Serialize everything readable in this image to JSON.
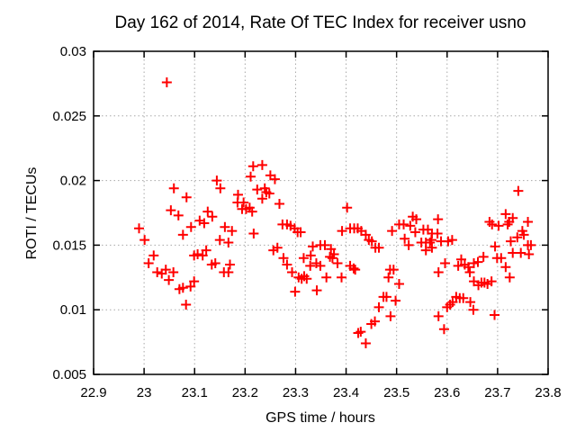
{
  "page": {
    "background": "#ffffff"
  },
  "style": {
    "border_color": "#000000",
    "grid_color": "#a8a8a8",
    "text_color": "#000000",
    "marker_color": "#ff0000"
  },
  "chart_data": {
    "type": "scatter",
    "title": "Day 162 of 2014, Rate Of TEC Index for receiver usno",
    "xlabel": "GPS time / hours",
    "ylabel": "ROTI / TECUs",
    "xlim": [
      22.9,
      23.8
    ],
    "ylim": [
      0.005,
      0.03
    ],
    "grid": true,
    "legend": "none",
    "marker": {
      "shape": "plus",
      "color": "#ff0000",
      "size": 11,
      "stroke_width": 2
    },
    "xticks": {
      "values": [
        22.9,
        23.0,
        23.1,
        23.2,
        23.3,
        23.4,
        23.5,
        23.6,
        23.7,
        23.8
      ],
      "labels": [
        "22.9",
        "23",
        "23.1",
        "23.2",
        "23.3",
        "23.4",
        "23.5",
        "23.6",
        "23.7",
        "23.8"
      ]
    },
    "yticks": {
      "values": [
        0.005,
        0.01,
        0.015,
        0.02,
        0.025,
        0.03
      ],
      "labels": [
        "0.005",
        "0.01",
        "0.015",
        "0.02",
        "0.025",
        "0.03"
      ]
    },
    "series": [
      {
        "name": "ROTI",
        "points": [
          [
            22.99,
            0.0163
          ],
          [
            23.001,
            0.0154
          ],
          [
            23.045,
            0.0276
          ],
          [
            23.059,
            0.0194
          ],
          [
            23.084,
            0.0187
          ],
          [
            23.053,
            0.0177
          ],
          [
            23.068,
            0.0173
          ],
          [
            23.093,
            0.0164
          ],
          [
            23.077,
            0.0158
          ],
          [
            23.019,
            0.0142
          ],
          [
            23.009,
            0.0136
          ],
          [
            23.043,
            0.0131
          ],
          [
            23.026,
            0.0129
          ],
          [
            23.035,
            0.0128
          ],
          [
            23.058,
            0.0129
          ],
          [
            23.049,
            0.0123
          ],
          [
            23.07,
            0.0116
          ],
          [
            23.077,
            0.0117
          ],
          [
            23.092,
            0.0118
          ],
          [
            23.083,
            0.0104
          ],
          [
            23.099,
            0.0142
          ],
          [
            23.106,
            0.0143
          ],
          [
            23.116,
            0.0142
          ],
          [
            23.123,
            0.0146
          ],
          [
            23.099,
            0.0122
          ],
          [
            23.11,
            0.0169
          ],
          [
            23.119,
            0.0167
          ],
          [
            23.126,
            0.0176
          ],
          [
            23.135,
            0.0172
          ],
          [
            23.134,
            0.0135
          ],
          [
            23.141,
            0.0136
          ],
          [
            23.144,
            0.02
          ],
          [
            23.151,
            0.0194
          ],
          [
            23.15,
            0.0154
          ],
          [
            23.16,
            0.0164
          ],
          [
            23.167,
            0.0152
          ],
          [
            23.17,
            0.0135
          ],
          [
            23.158,
            0.0129
          ],
          [
            23.167,
            0.0129
          ],
          [
            23.174,
            0.0161
          ],
          [
            23.186,
            0.0189
          ],
          [
            23.185,
            0.0183
          ],
          [
            23.197,
            0.0183
          ],
          [
            23.194,
            0.0178
          ],
          [
            23.202,
            0.0178
          ],
          [
            23.209,
            0.0179
          ],
          [
            23.214,
            0.0176
          ],
          [
            23.211,
            0.0203
          ],
          [
            23.216,
            0.0211
          ],
          [
            23.234,
            0.0212
          ],
          [
            23.25,
            0.0204
          ],
          [
            23.259,
            0.0201
          ],
          [
            23.224,
            0.0193
          ],
          [
            23.239,
            0.0194
          ],
          [
            23.242,
            0.0191
          ],
          [
            23.248,
            0.019
          ],
          [
            23.234,
            0.0186
          ],
          [
            23.268,
            0.0182
          ],
          [
            23.274,
            0.0166
          ],
          [
            23.283,
            0.0166
          ],
          [
            23.29,
            0.0165
          ],
          [
            23.298,
            0.0163
          ],
          [
            23.304,
            0.016
          ],
          [
            23.31,
            0.016
          ],
          [
            23.217,
            0.0159
          ],
          [
            23.264,
            0.0148
          ],
          [
            23.256,
            0.0146
          ],
          [
            23.276,
            0.014
          ],
          [
            23.283,
            0.0135
          ],
          [
            23.293,
            0.0129
          ],
          [
            23.316,
            0.014
          ],
          [
            23.33,
            0.0142
          ],
          [
            23.317,
            0.0126
          ],
          [
            23.322,
            0.0124
          ],
          [
            23.306,
            0.0125
          ],
          [
            23.312,
            0.0124
          ],
          [
            23.299,
            0.0114
          ],
          [
            23.329,
            0.0134
          ],
          [
            23.334,
            0.0149
          ],
          [
            23.349,
            0.015
          ],
          [
            23.358,
            0.015
          ],
          [
            23.37,
            0.0147
          ],
          [
            23.376,
            0.0143
          ],
          [
            23.368,
            0.0141
          ],
          [
            23.373,
            0.014
          ],
          [
            23.341,
            0.0136
          ],
          [
            23.349,
            0.0134
          ],
          [
            23.383,
            0.0136
          ],
          [
            23.361,
            0.0125
          ],
          [
            23.391,
            0.0125
          ],
          [
            23.392,
            0.0161
          ],
          [
            23.402,
            0.0179
          ],
          [
            23.408,
            0.0163
          ],
          [
            23.416,
            0.0163
          ],
          [
            23.423,
            0.0163
          ],
          [
            23.43,
            0.0161
          ],
          [
            23.408,
            0.0134
          ],
          [
            23.415,
            0.0132
          ],
          [
            23.418,
            0.0131
          ],
          [
            23.439,
            0.0158
          ],
          [
            23.445,
            0.0154
          ],
          [
            23.451,
            0.0153
          ],
          [
            23.342,
            0.0115
          ],
          [
            23.424,
            0.0082
          ],
          [
            23.429,
            0.0083
          ],
          [
            23.439,
            0.0074
          ],
          [
            23.45,
            0.0089
          ],
          [
            23.457,
            0.0091
          ],
          [
            23.465,
            0.0102
          ],
          [
            23.474,
            0.011
          ],
          [
            23.48,
            0.011
          ],
          [
            23.488,
            0.0095
          ],
          [
            23.498,
            0.0107
          ],
          [
            23.505,
            0.012
          ],
          [
            23.484,
            0.0125
          ],
          [
            23.487,
            0.0131
          ],
          [
            23.494,
            0.0131
          ],
          [
            23.458,
            0.0148
          ],
          [
            23.465,
            0.0148
          ],
          [
            23.491,
            0.0161
          ],
          [
            23.505,
            0.0166
          ],
          [
            23.514,
            0.0166
          ],
          [
            23.527,
            0.0165
          ],
          [
            23.532,
            0.0172
          ],
          [
            23.539,
            0.017
          ],
          [
            23.537,
            0.016
          ],
          [
            23.553,
            0.0162
          ],
          [
            23.562,
            0.0162
          ],
          [
            23.516,
            0.0155
          ],
          [
            23.524,
            0.015
          ],
          [
            23.549,
            0.0152
          ],
          [
            23.558,
            0.0152
          ],
          [
            23.566,
            0.0152
          ],
          [
            23.558,
            0.0146
          ],
          [
            23.57,
            0.0159
          ],
          [
            23.569,
            0.0154
          ],
          [
            23.57,
            0.0148
          ],
          [
            23.582,
            0.017
          ],
          [
            23.581,
            0.0159
          ],
          [
            23.588,
            0.0153
          ],
          [
            23.602,
            0.0153
          ],
          [
            23.61,
            0.0154
          ],
          [
            23.583,
            0.0129
          ],
          [
            23.596,
            0.0136
          ],
          [
            23.628,
            0.0139
          ],
          [
            23.622,
            0.0134
          ],
          [
            23.635,
            0.0135
          ],
          [
            23.642,
            0.0133
          ],
          [
            23.653,
            0.0136
          ],
          [
            23.661,
            0.0137
          ],
          [
            23.672,
            0.0141
          ],
          [
            23.645,
            0.0129
          ],
          [
            23.653,
            0.0122
          ],
          [
            23.662,
            0.0119
          ],
          [
            23.668,
            0.0121
          ],
          [
            23.674,
            0.0121
          ],
          [
            23.68,
            0.012
          ],
          [
            23.618,
            0.011
          ],
          [
            23.625,
            0.0109
          ],
          [
            23.632,
            0.0109
          ],
          [
            23.6,
            0.0102
          ],
          [
            23.606,
            0.0104
          ],
          [
            23.611,
            0.0106
          ],
          [
            23.646,
            0.0106
          ],
          [
            23.652,
            0.01
          ],
          [
            23.583,
            0.0095
          ],
          [
            23.594,
            0.0085
          ],
          [
            23.684,
            0.0168
          ],
          [
            23.689,
            0.0166
          ],
          [
            23.694,
            0.0096
          ],
          [
            23.741,
            0.0192
          ],
          [
            23.716,
            0.0174
          ],
          [
            23.723,
            0.0168
          ],
          [
            23.73,
            0.0171
          ],
          [
            23.72,
            0.0166
          ],
          [
            23.702,
            0.0165
          ],
          [
            23.76,
            0.0168
          ],
          [
            23.749,
            0.0161
          ],
          [
            23.752,
            0.0158
          ],
          [
            23.739,
            0.0156
          ],
          [
            23.726,
            0.0153
          ],
          [
            23.695,
            0.0149
          ],
          [
            23.76,
            0.015
          ],
          [
            23.766,
            0.015
          ],
          [
            23.73,
            0.0144
          ],
          [
            23.746,
            0.0144
          ],
          [
            23.762,
            0.0143
          ],
          [
            23.699,
            0.014
          ],
          [
            23.707,
            0.014
          ],
          [
            23.716,
            0.0133
          ],
          [
            23.724,
            0.0125
          ],
          [
            23.688,
            0.0122
          ]
        ]
      }
    ]
  }
}
